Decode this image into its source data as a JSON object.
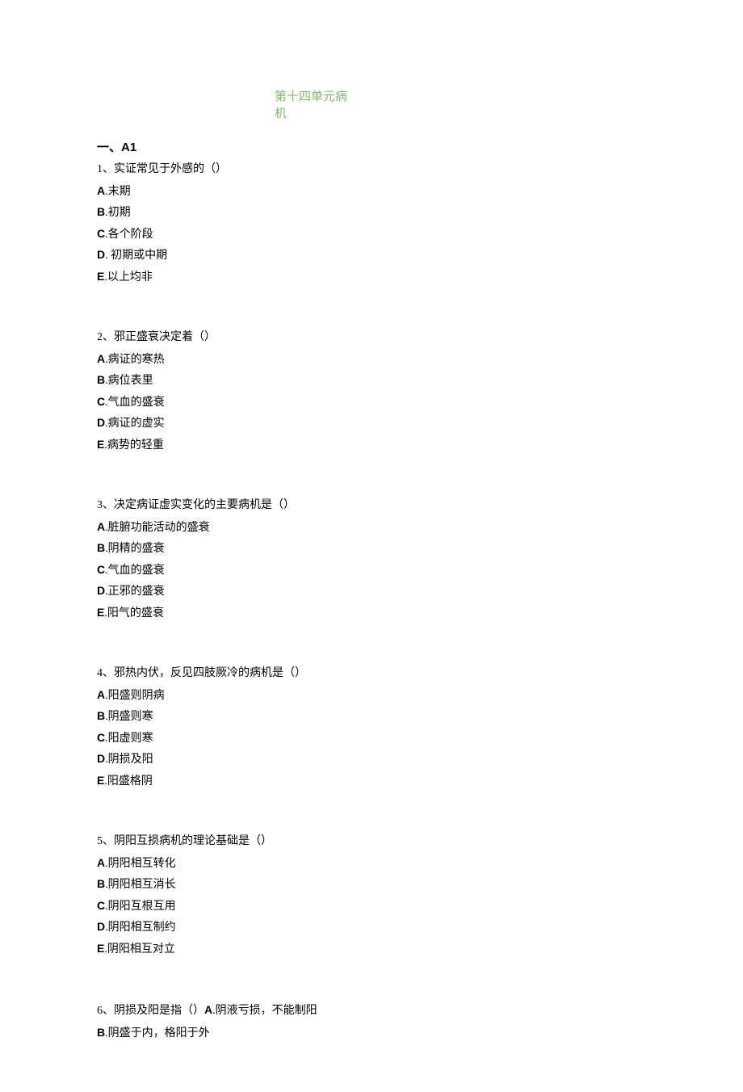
{
  "title_line1": "第十四单元病",
  "title_line2": "机",
  "section": "一、A1",
  "questions": [
    {
      "stem": "1、实证常见于外感的（）",
      "opts": [
        "A.末期",
        "B.初期",
        "C.各个阶段",
        "D. 初期或中期",
        "E.以上均非"
      ]
    },
    {
      "stem": "2、邪正盛衰决定着（）",
      "opts": [
        "A.病证的寒热",
        "B.病位表里",
        "C.气血的盛衰",
        "D.病证的虚实",
        "E.病势的轻重"
      ]
    },
    {
      "stem": "3、决定病证虚实变化的主要病机是（）",
      "opts": [
        "A.脏腑功能活动的盛衰",
        "B.阴精的盛衰",
        "C.气血的盛衰",
        "D.正邪的盛衰",
        "E.阳气的盛衰"
      ]
    },
    {
      "stem": "4、邪热内伏，反见四肢厥冷的病机是（）",
      "opts": [
        "A.阳盛则阴病",
        "B.阴盛则寒",
        "C.阳虚则寒",
        "D.阴损及阳",
        "E.阳盛格阴"
      ]
    },
    {
      "stem": "5、阴阳互损病机的理论基础是（）",
      "opts": [
        "A.阴阳相互转化",
        "B.阴阳相互消长",
        "C.阴阳互根互用",
        "D.阴阳相互制约",
        "E.阴阳相互对立"
      ]
    },
    {
      "stem": "6、阴损及阳是指（）A.阴液亏损，不能制阳",
      "opts": [
        "B.阴盛于内，格阳于外"
      ]
    }
  ]
}
